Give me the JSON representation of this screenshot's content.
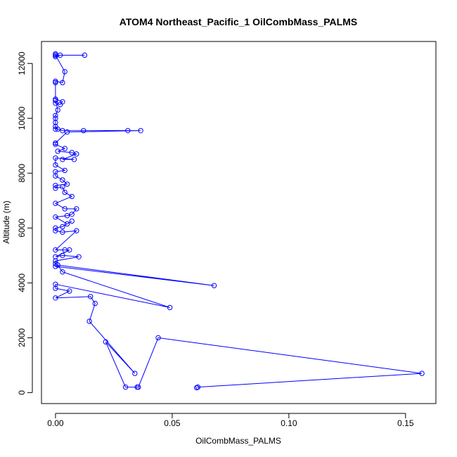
{
  "chart_data": {
    "type": "line",
    "title": "ATOM4 Northeast_Pacific_1 OilCombMass_PALMS",
    "xlabel": "OilCombMass_PALMS",
    "ylabel": "Altitude (m)",
    "xlim": [
      -0.006,
      0.163
    ],
    "ylim": [
      -400,
      12800
    ],
    "x_ticks": [
      0.0,
      0.05,
      0.1,
      0.15
    ],
    "x_tick_labels": [
      "0.00",
      "0.05",
      "0.10",
      "0.15"
    ],
    "y_ticks": [
      0,
      2000,
      4000,
      6000,
      8000,
      10000,
      12000
    ],
    "y_tick_labels": [
      "0",
      "2000",
      "4000",
      "6000",
      "8000",
      "10000",
      "12000"
    ],
    "grid": false,
    "legend": "none",
    "series": [
      {
        "color": "#0000ff",
        "marker": "open-circle",
        "points": [
          [
            0.0,
            12350
          ],
          [
            0.0,
            12300
          ],
          [
            0.0,
            12250
          ],
          [
            0.002,
            12300
          ],
          [
            0.0125,
            12300
          ],
          [
            0.0,
            12300
          ],
          [
            0.004,
            11700
          ],
          [
            0.003,
            11300
          ],
          [
            0.0,
            11350
          ],
          [
            0.0,
            11300
          ],
          [
            0.0,
            10700
          ],
          [
            0.003,
            10600
          ],
          [
            0.002,
            10500
          ],
          [
            0.0,
            10550
          ],
          [
            0.0,
            10650
          ],
          [
            0.001,
            10300
          ],
          [
            0.0,
            10100
          ],
          [
            0.0,
            10000
          ],
          [
            0.0,
            9850
          ],
          [
            0.0,
            9700
          ],
          [
            0.0,
            9600
          ],
          [
            0.001,
            9600
          ],
          [
            0.003,
            9550
          ],
          [
            0.012,
            9550
          ],
          [
            0.031,
            9550
          ],
          [
            0.0365,
            9550
          ],
          [
            0.005,
            9500
          ],
          [
            0.0,
            9100
          ],
          [
            0.0,
            9050
          ],
          [
            0.004,
            8900
          ],
          [
            0.001,
            8800
          ],
          [
            0.007,
            8750
          ],
          [
            0.009,
            8700
          ],
          [
            0.003,
            8500
          ],
          [
            0.008,
            8500
          ],
          [
            0.0,
            8550
          ],
          [
            0.0,
            8300
          ],
          [
            0.004,
            8100
          ],
          [
            0.0,
            8050
          ],
          [
            0.0,
            7900
          ],
          [
            0.003,
            7750
          ],
          [
            0.005,
            7600
          ],
          [
            0.0,
            7550
          ],
          [
            0.0,
            7450
          ],
          [
            0.003,
            7500
          ],
          [
            0.004,
            7300
          ],
          [
            0.007,
            7150
          ],
          [
            0.0,
            6900
          ],
          [
            0.004,
            6700
          ],
          [
            0.009,
            6700
          ],
          [
            0.007,
            6500
          ],
          [
            0.005,
            6450
          ],
          [
            0.0,
            6400
          ],
          [
            0.005,
            6150
          ],
          [
            0.007,
            6250
          ],
          [
            0.003,
            6050
          ],
          [
            0.0,
            6000
          ],
          [
            0.0,
            5900
          ],
          [
            0.003,
            5850
          ],
          [
            0.009,
            5900
          ],
          [
            0.0,
            5200
          ],
          [
            0.004,
            5200
          ],
          [
            0.006,
            5200
          ],
          [
            0.0,
            4950
          ],
          [
            0.003,
            5000
          ],
          [
            0.01,
            4950
          ],
          [
            0.0,
            4800
          ],
          [
            0.0,
            4700
          ],
          [
            0.0,
            4600
          ],
          [
            0.068,
            3900
          ],
          [
            0.001,
            4650
          ],
          [
            0.003,
            4400
          ],
          [
            0.049,
            3100
          ],
          [
            0.0,
            3950
          ],
          [
            0.0,
            3800
          ],
          [
            0.006,
            3700
          ],
          [
            0.0,
            3450
          ],
          [
            0.015,
            3500
          ],
          [
            0.017,
            3250
          ],
          [
            0.0145,
            2600
          ],
          [
            0.034,
            700
          ],
          [
            0.0215,
            1850
          ],
          [
            0.03,
            200
          ],
          [
            0.035,
            200
          ],
          [
            0.0355,
            200
          ],
          [
            0.044,
            2000
          ],
          [
            0.157,
            700
          ],
          [
            0.061,
            200
          ],
          [
            0.0605,
            180
          ]
        ]
      }
    ]
  }
}
